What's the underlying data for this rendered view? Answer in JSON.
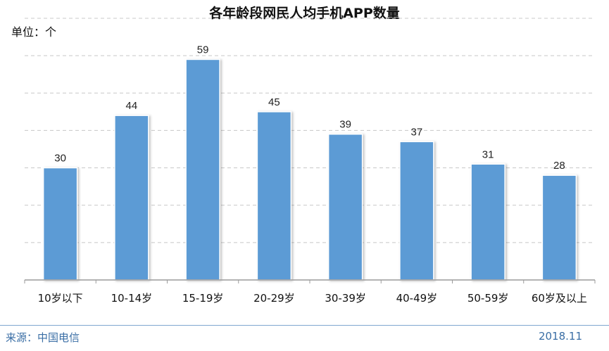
{
  "chart_data": {
    "type": "bar",
    "title": "各年龄段网民人均手机APP数量",
    "unit_label": "单位：个",
    "categories": [
      "10岁以下",
      "10-14岁",
      "15-19岁",
      "20-29岁",
      "30-39岁",
      "40-49岁",
      "50-59岁",
      "60岁及以上"
    ],
    "values": [
      30,
      44,
      59,
      45,
      39,
      37,
      31,
      28
    ],
    "ylim": [
      0,
      70
    ],
    "grid": true,
    "bar_color": "#5b9bd5",
    "legend": "none"
  },
  "footer": {
    "source": "来源：中国电信",
    "date": "2018.11"
  },
  "colors": {
    "accent_line": "#7fa7cf",
    "footer_text": "#3a6ea5"
  }
}
